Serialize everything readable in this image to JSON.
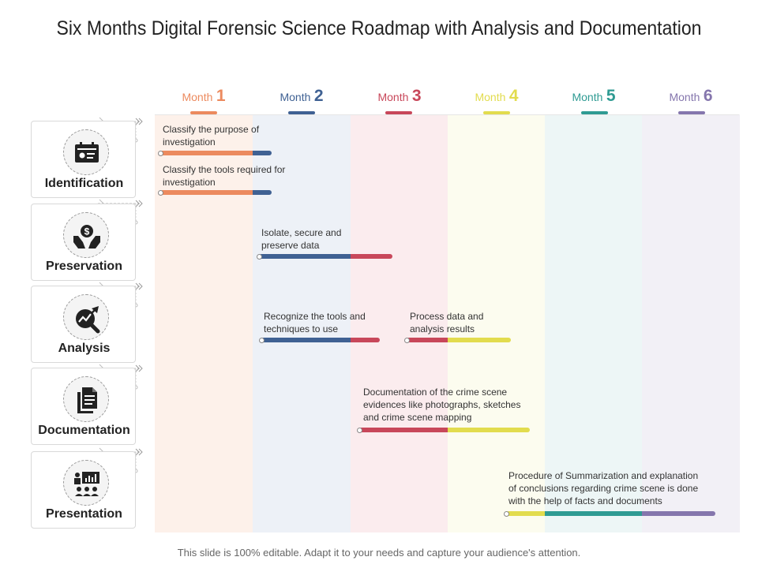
{
  "title": "Six Months Digital Forensic Science Roadmap with Analysis and Documentation",
  "footer": "This slide is 100% editable. Adapt it to your needs and capture your audience's attention.",
  "months": [
    {
      "word": "Month",
      "num": "1",
      "color": "#ec8a5e",
      "bg": "#fdf1ea"
    },
    {
      "word": "Month",
      "num": "2",
      "color": "#3f6193",
      "bg": "#edf1f7"
    },
    {
      "word": "Month",
      "num": "3",
      "color": "#c8475a",
      "bg": "#fbecee"
    },
    {
      "word": "Month",
      "num": "4",
      "color": "#e2dc4e",
      "bg": "#fcfcef"
    },
    {
      "word": "Month",
      "num": "5",
      "color": "#2f9b93",
      "bg": "#edf6f6"
    },
    {
      "word": "Month",
      "num": "6",
      "color": "#8576ad",
      "bg": "#f2f0f6"
    }
  ],
  "phases": [
    {
      "label": "Identification",
      "icon": "id-card-icon"
    },
    {
      "label": "Preservation",
      "icon": "hands-dollar-icon"
    },
    {
      "label": "Analysis",
      "icon": "trend-magnifier-icon"
    },
    {
      "label": "Documentation",
      "icon": "documents-icon"
    },
    {
      "label": "Presentation",
      "icon": "presentation-icon"
    }
  ],
  "tasks": [
    {
      "text": "Classify the purpose of investigation",
      "phase": "Identification",
      "start_month": 1.0,
      "end_month": 2.2
    },
    {
      "text": "Classify the tools required for investigation",
      "phase": "Identification",
      "start_month": 1.0,
      "end_month": 2.2
    },
    {
      "text": "Isolate, secure and preserve data",
      "phase": "Preservation",
      "start_month": 2.1,
      "end_month": 3.45
    },
    {
      "text": "Recognize the tools and techniques to use",
      "phase": "Analysis",
      "start_month": 2.1,
      "end_month": 3.3
    },
    {
      "text": "Process data and analysis results",
      "phase": "Analysis",
      "start_month": 3.6,
      "end_month": 4.65
    },
    {
      "text": "Documentation of the crime scene evidences like photographs, sketches and crime scene mapping",
      "phase": "Documentation",
      "start_month": 3.1,
      "end_month": 4.85
    },
    {
      "text": "Procedure of Summarization and explanation of conclusions regarding crime scene is done with the help of facts and documents",
      "phase": "Presentation",
      "start_month": 4.6,
      "end_month": 6.75
    }
  ]
}
